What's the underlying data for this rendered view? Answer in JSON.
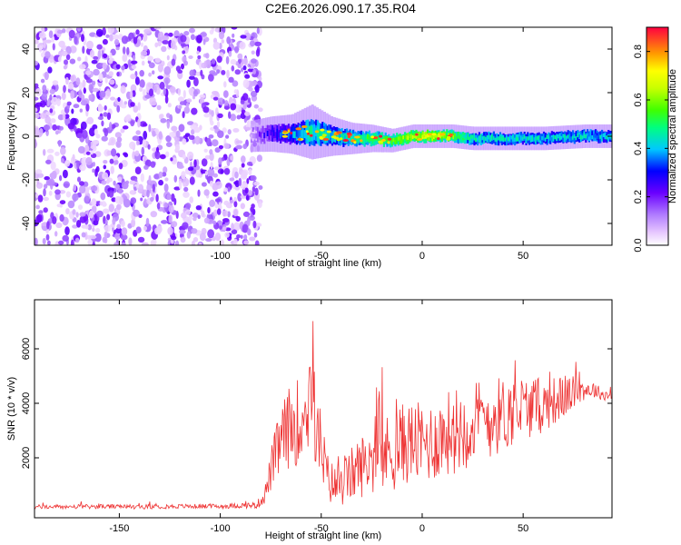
{
  "title": "C2E6.2026.090.17.35.R04",
  "chart_data": [
    {
      "type": "heatmap",
      "name": "spectrogram",
      "xlabel": "Height of straight line (km)",
      "ylabel": "Frequency (Hz)",
      "xlim": [
        -192,
        94
      ],
      "ylim": [
        -50,
        50
      ],
      "xticks": [
        -150,
        -100,
        -50,
        0,
        50
      ],
      "yticks": [
        -40,
        -20,
        0,
        20,
        40
      ],
      "colorbar": {
        "label": "Normalized spectral amplitude",
        "range": [
          0.0,
          0.9
        ],
        "ticks": [
          0.0,
          0.2,
          0.4,
          0.6,
          0.8
        ]
      },
      "noise_region_x": [
        -192,
        -80
      ],
      "signal_band": [
        {
          "x": -85,
          "center": 0,
          "width": 8,
          "amp": 0.1
        },
        {
          "x": -75,
          "center": 1,
          "width": 9,
          "amp": 0.25
        },
        {
          "x": -65,
          "center": 1,
          "width": 10,
          "amp": 0.35
        },
        {
          "x": -55,
          "center": 2,
          "width": 14,
          "amp": 0.45
        },
        {
          "x": -45,
          "center": 0,
          "width": 10,
          "amp": 0.4
        },
        {
          "x": -35,
          "center": -1,
          "width": 8,
          "amp": 0.45
        },
        {
          "x": -25,
          "center": -1,
          "width": 7,
          "amp": 0.5
        },
        {
          "x": -15,
          "center": -2,
          "width": 6,
          "amp": 0.55
        },
        {
          "x": -5,
          "center": 0,
          "width": 6,
          "amp": 0.6
        },
        {
          "x": 5,
          "center": 0,
          "width": 6,
          "amp": 0.65
        },
        {
          "x": 15,
          "center": 0,
          "width": 6,
          "amp": 0.55
        },
        {
          "x": 25,
          "center": -1,
          "width": 6,
          "amp": 0.45
        },
        {
          "x": 40,
          "center": -1,
          "width": 6,
          "amp": 0.4
        },
        {
          "x": 60,
          "center": -1,
          "width": 6,
          "amp": 0.4
        },
        {
          "x": 80,
          "center": 0,
          "width": 6,
          "amp": 0.4
        },
        {
          "x": 94,
          "center": 0,
          "width": 6,
          "amp": 0.4
        }
      ]
    },
    {
      "type": "line",
      "name": "snr",
      "xlabel": "Height of straight line (km)",
      "ylabel": "SNR (10 * v/v)",
      "xlim": [
        -192,
        94
      ],
      "ylim": [
        -200,
        7800
      ],
      "xticks": [
        -150,
        -100,
        -50,
        0,
        50
      ],
      "yticks": [
        2000,
        4000,
        6000
      ],
      "color": "#ee3333",
      "x": [
        -192,
        -180,
        -160,
        -140,
        -120,
        -100,
        -90,
        -82,
        -78,
        -74,
        -70,
        -66,
        -62,
        -58,
        -55,
        -53,
        -50,
        -47,
        -44,
        -40,
        -36,
        -32,
        -28,
        -24,
        -20,
        -15,
        -10,
        -5,
        0,
        5,
        10,
        15,
        20,
        25,
        30,
        35,
        40,
        45,
        50,
        55,
        60,
        65,
        70,
        75,
        80,
        85,
        90,
        94
      ],
      "y": [
        200,
        200,
        210,
        200,
        220,
        220,
        250,
        260,
        600,
        1800,
        2600,
        3100,
        3300,
        3600,
        4200,
        3400,
        2200,
        1300,
        1000,
        1000,
        1300,
        1600,
        1800,
        2000,
        2100,
        2200,
        2500,
        2600,
        2500,
        2600,
        2800,
        3000,
        3100,
        3300,
        3400,
        3500,
        3600,
        3700,
        3800,
        3900,
        3900,
        4100,
        4200,
        4400,
        4500,
        4500,
        4300,
        4300
      ],
      "noise_amplitude": [
        80,
        80,
        80,
        80,
        80,
        90,
        100,
        120,
        300,
        900,
        1300,
        1500,
        1600,
        1700,
        1900,
        1700,
        1500,
        900,
        800,
        800,
        1000,
        1100,
        1200,
        1300,
        1400,
        1500,
        1500,
        1500,
        1500,
        1500,
        1500,
        1600,
        1600,
        1600,
        1500,
        1500,
        1400,
        1300,
        1200,
        1100,
        1000,
        900,
        800,
        600,
        400,
        300,
        200,
        200
      ]
    }
  ]
}
